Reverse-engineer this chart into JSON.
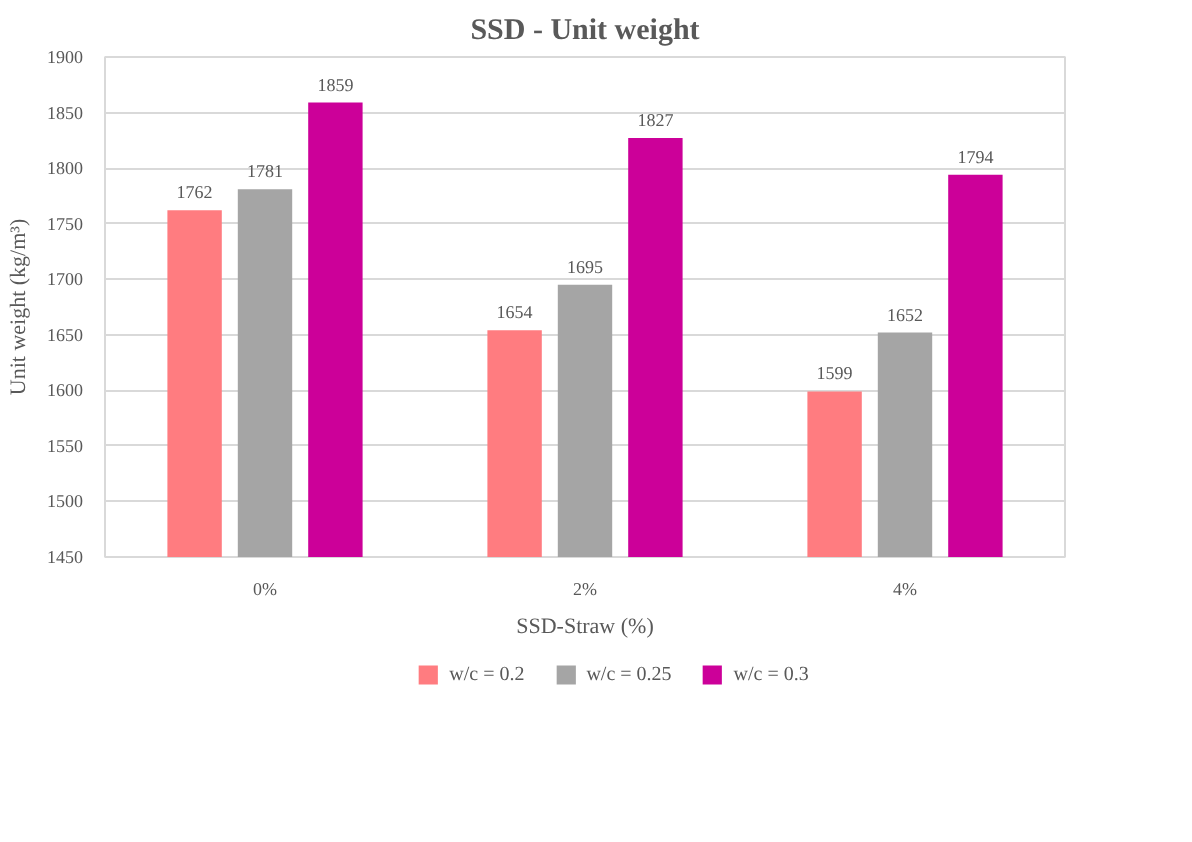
{
  "chart_data": {
    "type": "bar",
    "title": "SSD - Unit weight",
    "xlabel": "SSD-Straw (%)",
    "ylabel": "Unit weight (kg/m³)",
    "categories": [
      "0%",
      "2%",
      "4%"
    ],
    "series": [
      {
        "name": "w/c = 0.2",
        "color": "#ff7c80",
        "values": [
          1762,
          1654,
          1599
        ]
      },
      {
        "name": "w/c = 0.25",
        "color": "#a5a5a5",
        "values": [
          1781,
          1695,
          1652
        ]
      },
      {
        "name": "w/c = 0.3",
        "color": "#cc0099",
        "values": [
          1859,
          1827,
          1794
        ]
      }
    ],
    "ylim": [
      1450,
      1900
    ],
    "yticks": [
      1450,
      1500,
      1550,
      1600,
      1650,
      1700,
      1750,
      1800,
      1850,
      1900
    ],
    "grid": "y",
    "legend": "bottom",
    "data_labels": true
  }
}
